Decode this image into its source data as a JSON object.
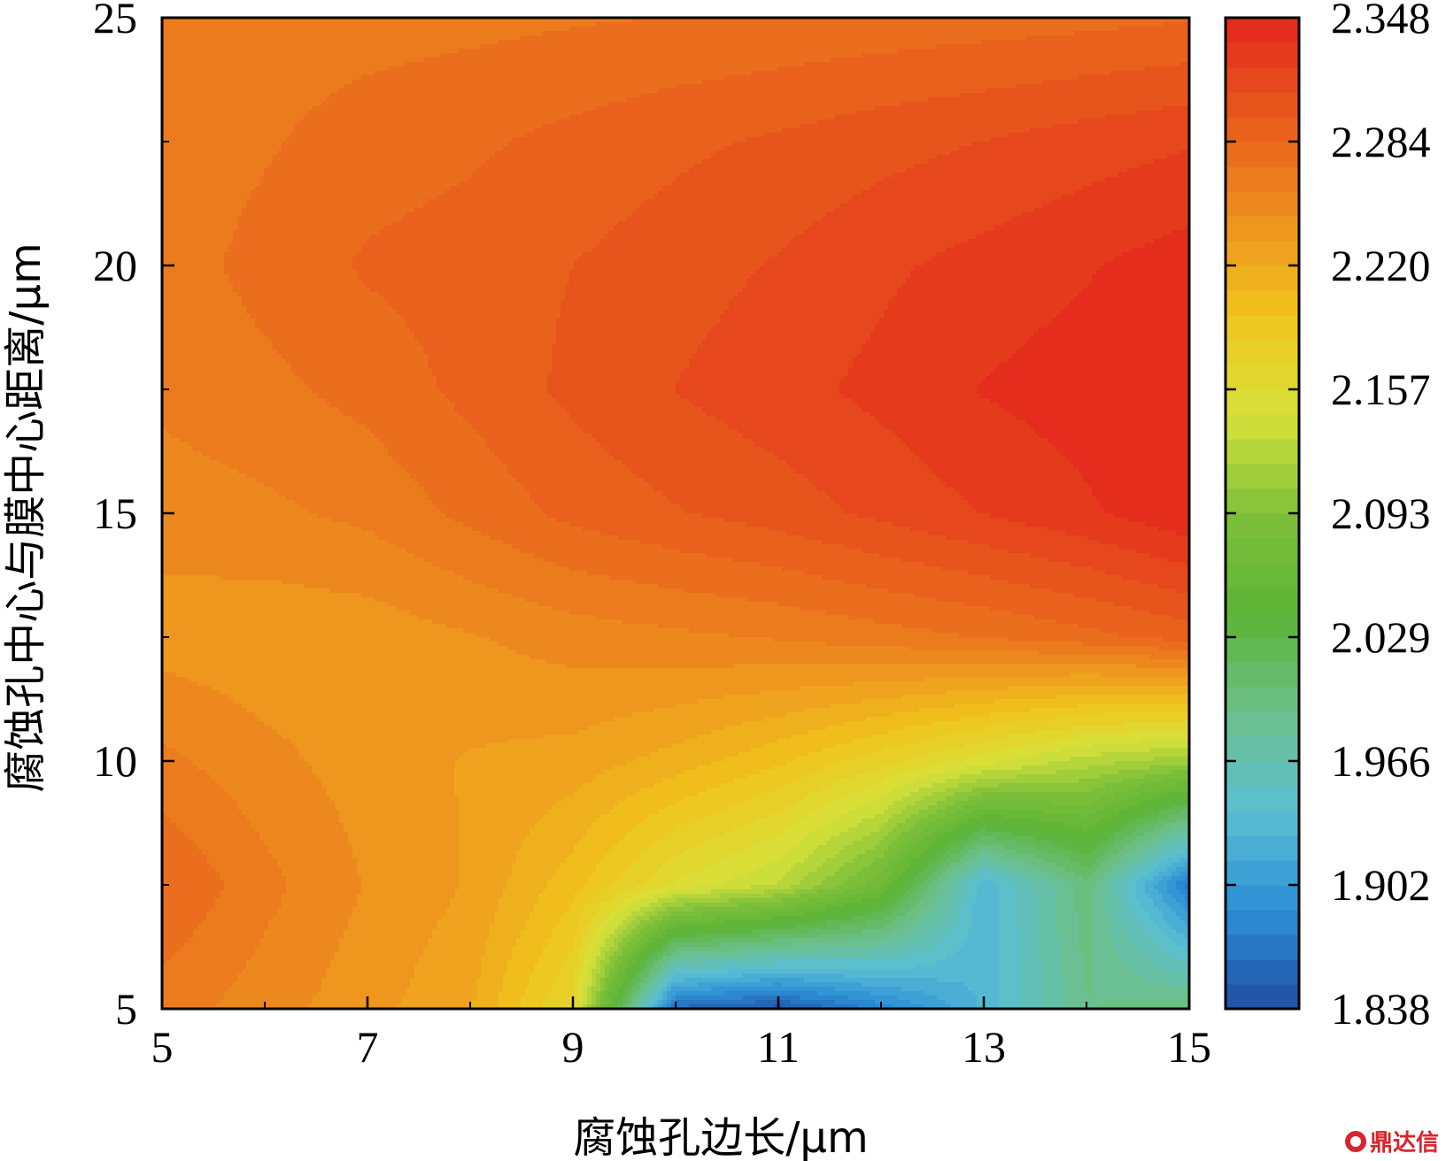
{
  "chart_data": {
    "type": "heatmap",
    "subtype": "filled-contour",
    "xlabel": "腐蚀孔边长/μm",
    "ylabel": "腐蚀孔中心与膜中心距离/μm",
    "xlim": [
      5,
      15
    ],
    "ylim": [
      5,
      25
    ],
    "x_ticks": [
      "5",
      "7",
      "9",
      "11",
      "13",
      "15"
    ],
    "y_ticks": [
      "5",
      "10",
      "15",
      "20",
      "25"
    ],
    "x": [
      5,
      6,
      7,
      8,
      9,
      10,
      11,
      12,
      13,
      14,
      15
    ],
    "y": [
      5,
      7.5,
      10,
      12.5,
      15,
      17.5,
      20,
      22.5,
      25
    ],
    "z": [
      [
        2.265,
        2.252,
        2.238,
        2.222,
        2.165,
        1.86,
        1.845,
        1.88,
        1.93,
        1.99,
        2.0
      ],
      [
        2.285,
        2.263,
        2.245,
        2.232,
        2.2,
        2.155,
        2.13,
        2.07,
        1.93,
        2.0,
        1.87
      ],
      [
        2.262,
        2.25,
        2.24,
        2.232,
        2.228,
        2.215,
        2.198,
        2.175,
        2.15,
        2.125,
        2.11
      ],
      [
        2.24,
        2.237,
        2.238,
        2.245,
        2.252,
        2.256,
        2.26,
        2.266,
        2.272,
        2.28,
        2.29
      ],
      [
        2.252,
        2.256,
        2.262,
        2.275,
        2.288,
        2.296,
        2.303,
        2.313,
        2.323,
        2.333,
        2.346
      ],
      [
        2.262,
        2.268,
        2.276,
        2.288,
        2.3,
        2.31,
        2.318,
        2.326,
        2.336,
        2.342,
        2.348
      ],
      [
        2.265,
        2.276,
        2.286,
        2.29,
        2.297,
        2.304,
        2.311,
        2.32,
        2.327,
        2.334,
        2.342
      ],
      [
        2.264,
        2.27,
        2.278,
        2.282,
        2.288,
        2.294,
        2.299,
        2.305,
        2.31,
        2.316,
        2.321
      ],
      [
        2.262,
        2.264,
        2.266,
        2.268,
        2.27,
        2.272,
        2.274,
        2.276,
        2.278,
        2.28,
        2.283
      ]
    ],
    "colorbar": {
      "min": 1.838,
      "max": 2.348,
      "ticks": [
        "1.838",
        "1.902",
        "1.966",
        "2.029",
        "2.093",
        "2.157",
        "2.220",
        "2.284",
        "2.348"
      ],
      "levels": 40,
      "colormap": [
        "#1f4ea2",
        "#2b8fd6",
        "#5bbfd2",
        "#6cc08a",
        "#5cb335",
        "#7ec03a",
        "#d8e23a",
        "#f0c41d",
        "#ee8f1e",
        "#e85a1c",
        "#e3261c"
      ]
    },
    "grid": false
  },
  "watermark": {
    "text": "鼎达信"
  }
}
